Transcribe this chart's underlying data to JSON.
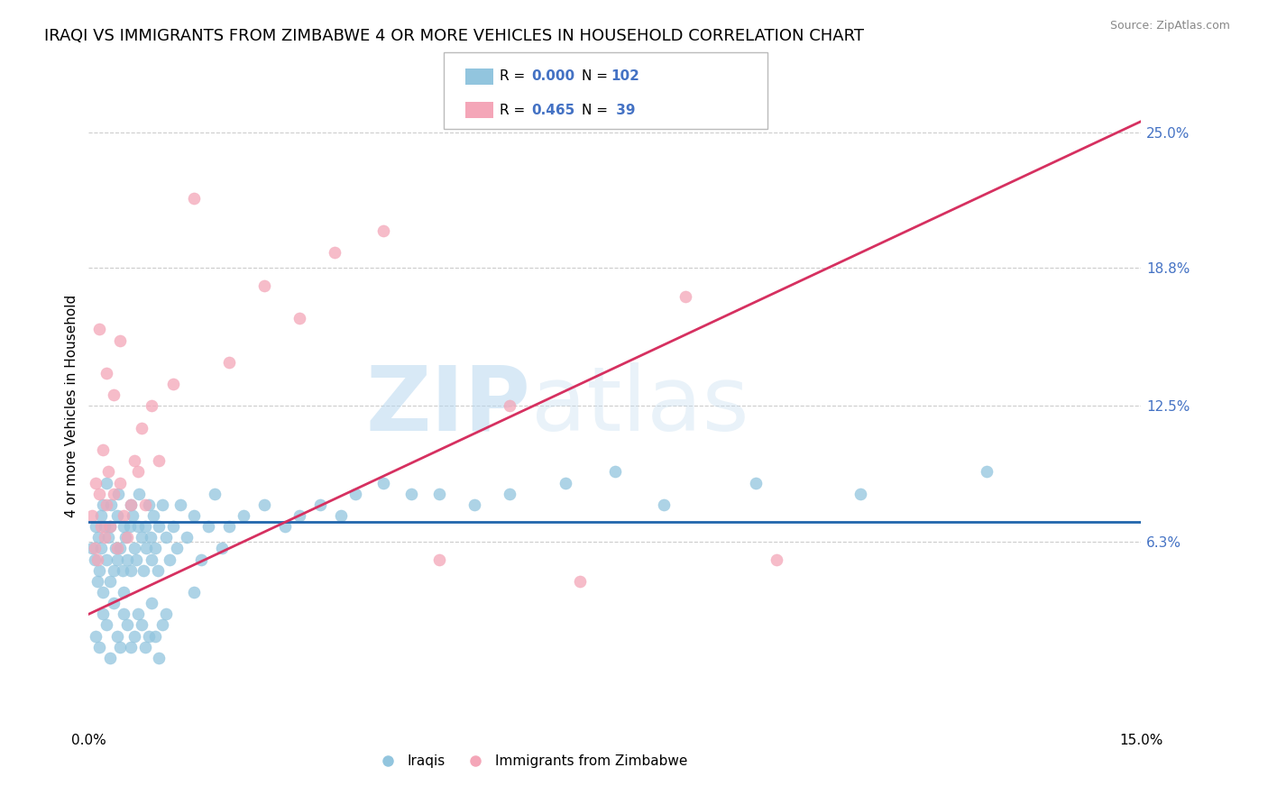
{
  "title": "IRAQI VS IMMIGRANTS FROM ZIMBABWE 4 OR MORE VEHICLES IN HOUSEHOLD CORRELATION CHART",
  "source": "Source: ZipAtlas.com",
  "ylabel": "4 or more Vehicles in Household",
  "xlim": [
    0.0,
    15.0
  ],
  "ylim": [
    -2.0,
    27.0
  ],
  "ytick_positions": [
    6.3,
    12.5,
    18.8,
    25.0
  ],
  "ytick_labels": [
    "6.3%",
    "12.5%",
    "18.8%",
    "25.0%"
  ],
  "blue_color": "#92c5de",
  "pink_color": "#f4a6b8",
  "blue_line_color": "#2166ac",
  "pink_line_color": "#d63060",
  "R_blue": 0.0,
  "N_blue": 102,
  "R_pink": 0.465,
  "N_pink": 39,
  "legend_label_blue": "Iraqis",
  "legend_label_pink": "Immigrants from Zimbabwe",
  "watermark_zip": "ZIP",
  "watermark_atlas": "atlas",
  "title_fontsize": 13,
  "label_fontsize": 11,
  "tick_fontsize": 11,
  "blue_line_y": 7.2,
  "pink_line_x0": 0.0,
  "pink_line_y0": 3.0,
  "pink_line_x1": 15.0,
  "pink_line_y1": 25.5,
  "blue_scatter_x": [
    0.05,
    0.08,
    0.1,
    0.12,
    0.13,
    0.15,
    0.17,
    0.18,
    0.2,
    0.2,
    0.22,
    0.25,
    0.25,
    0.28,
    0.3,
    0.3,
    0.32,
    0.35,
    0.38,
    0.4,
    0.4,
    0.42,
    0.45,
    0.48,
    0.5,
    0.5,
    0.52,
    0.55,
    0.58,
    0.6,
    0.6,
    0.62,
    0.65,
    0.68,
    0.7,
    0.72,
    0.75,
    0.78,
    0.8,
    0.82,
    0.85,
    0.88,
    0.9,
    0.92,
    0.95,
    0.98,
    1.0,
    1.05,
    1.1,
    1.15,
    1.2,
    1.25,
    1.3,
    1.4,
    1.5,
    1.6,
    1.7,
    1.8,
    1.9,
    2.0,
    2.2,
    2.5,
    2.8,
    3.0,
    3.3,
    3.6,
    3.8,
    4.2,
    4.6,
    5.0,
    5.5,
    6.0,
    6.8,
    7.5,
    8.2,
    9.5,
    11.0,
    12.8,
    0.1,
    0.15,
    0.2,
    0.25,
    0.3,
    0.35,
    0.4,
    0.45,
    0.5,
    0.55,
    0.6,
    0.65,
    0.7,
    0.75,
    0.8,
    0.85,
    0.9,
    0.95,
    1.0,
    1.05,
    1.1,
    1.5
  ],
  "blue_scatter_y": [
    6.0,
    5.5,
    7.0,
    4.5,
    6.5,
    5.0,
    7.5,
    6.0,
    8.0,
    4.0,
    7.0,
    5.5,
    9.0,
    6.5,
    7.0,
    4.5,
    8.0,
    5.0,
    6.0,
    7.5,
    5.5,
    8.5,
    6.0,
    5.0,
    7.0,
    4.0,
    6.5,
    5.5,
    7.0,
    8.0,
    5.0,
    7.5,
    6.0,
    5.5,
    7.0,
    8.5,
    6.5,
    5.0,
    7.0,
    6.0,
    8.0,
    6.5,
    5.5,
    7.5,
    6.0,
    5.0,
    7.0,
    8.0,
    6.5,
    5.5,
    7.0,
    6.0,
    8.0,
    6.5,
    7.5,
    5.5,
    7.0,
    8.5,
    6.0,
    7.0,
    7.5,
    8.0,
    7.0,
    7.5,
    8.0,
    7.5,
    8.5,
    9.0,
    8.5,
    8.5,
    8.0,
    8.5,
    9.0,
    9.5,
    8.0,
    9.0,
    8.5,
    9.5,
    2.0,
    1.5,
    3.0,
    2.5,
    1.0,
    3.5,
    2.0,
    1.5,
    3.0,
    2.5,
    1.5,
    2.0,
    3.0,
    2.5,
    1.5,
    2.0,
    3.5,
    2.0,
    1.0,
    2.5,
    3.0,
    4.0
  ],
  "pink_scatter_x": [
    0.05,
    0.08,
    0.1,
    0.12,
    0.15,
    0.18,
    0.2,
    0.22,
    0.25,
    0.28,
    0.3,
    0.35,
    0.4,
    0.45,
    0.5,
    0.55,
    0.6,
    0.65,
    0.7,
    0.75,
    0.8,
    0.9,
    1.0,
    1.2,
    1.5,
    2.0,
    2.5,
    3.0,
    3.5,
    4.2,
    5.0,
    6.0,
    7.0,
    8.5,
    9.8,
    0.15,
    0.25,
    0.35,
    0.45
  ],
  "pink_scatter_y": [
    7.5,
    6.0,
    9.0,
    5.5,
    8.5,
    7.0,
    10.5,
    6.5,
    8.0,
    9.5,
    7.0,
    8.5,
    6.0,
    9.0,
    7.5,
    6.5,
    8.0,
    10.0,
    9.5,
    11.5,
    8.0,
    12.5,
    10.0,
    13.5,
    22.0,
    14.5,
    18.0,
    16.5,
    19.5,
    20.5,
    5.5,
    12.5,
    4.5,
    17.5,
    5.5,
    16.0,
    14.0,
    13.0,
    15.5
  ]
}
